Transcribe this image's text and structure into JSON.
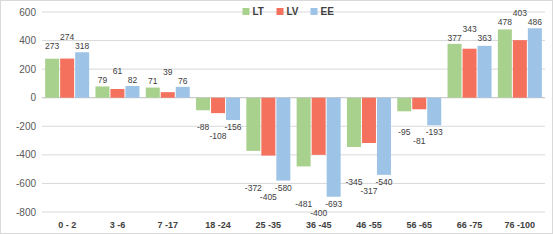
{
  "chart_data": {
    "type": "bar",
    "categories": [
      "0 - 2",
      "3 -6",
      "7 -17",
      "18 -24",
      "25 -35",
      "36 -45",
      "46 -55",
      "56 -65",
      "66 -75",
      "76 -100"
    ],
    "series": [
      {
        "name": "LT",
        "color": "#a9d18e",
        "values": [
          273,
          79,
          71,
          -88,
          -372,
          -481,
          -345,
          -95,
          377,
          478
        ]
      },
      {
        "name": "LV",
        "color": "#f4715e",
        "values": [
          274,
          61,
          39,
          -108,
          -405,
          -400,
          -317,
          -81,
          343,
          403
        ]
      },
      {
        "name": "EE",
        "color": "#9dc3e6",
        "values": [
          318,
          82,
          76,
          -156,
          -580,
          -693,
          -540,
          -193,
          363,
          486
        ]
      }
    ],
    "ylim": [
      -800,
      600
    ],
    "yticks": [
      -800,
      -600,
      -400,
      -200,
      0,
      200,
      400,
      600
    ],
    "grid": true,
    "legend": "top",
    "data_labels": true
  }
}
